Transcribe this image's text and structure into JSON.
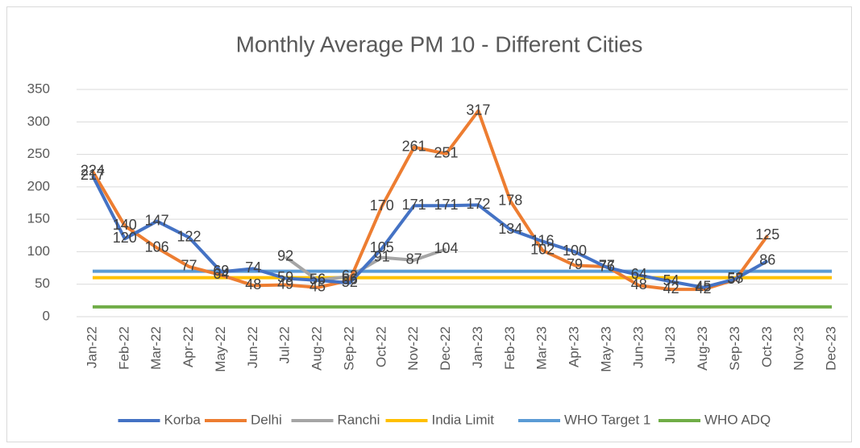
{
  "chart_data": {
    "type": "line",
    "title": "Monthly Average PM 10 - Different Cities",
    "categories": [
      "Jan-22",
      "Feb-22",
      "Mar-22",
      "Apr-22",
      "May-22",
      "Jun-22",
      "Jul-22",
      "Aug-22",
      "Sep-22",
      "Oct-22",
      "Nov-22",
      "Dec-22",
      "Jan-23",
      "Feb-23",
      "Mar-23",
      "Apr-23",
      "May-23",
      "Jun-23",
      "Jul-23",
      "Aug-23",
      "Sep-23",
      "Oct-23",
      "Nov-23",
      "Dec-23"
    ],
    "series": [
      {
        "name": "Korba",
        "color": "#4472c4",
        "data_labels": true,
        "values": [
          217,
          120,
          147,
          122,
          69,
          74,
          59,
          56,
          52,
          105,
          171,
          171,
          172,
          134,
          116,
          100,
          76,
          64,
          54,
          45,
          58,
          86,
          null,
          null
        ]
      },
      {
        "name": "Delhi",
        "color": "#ed7d31",
        "data_labels": true,
        "values": [
          224,
          140,
          106,
          77,
          64,
          48,
          49,
          45,
          56,
          170,
          261,
          251,
          317,
          178,
          102,
          79,
          77,
          48,
          42,
          42,
          57,
          125,
          null,
          null
        ]
      },
      {
        "name": "Ranchi",
        "color": "#a5a5a5",
        "data_labels": true,
        "values": [
          null,
          null,
          null,
          null,
          null,
          null,
          92,
          56,
          62,
          91,
          87,
          104,
          null,
          null,
          null,
          null,
          null,
          null,
          null,
          null,
          null,
          null,
          null,
          null
        ]
      },
      {
        "name": "India Limit",
        "color": "#ffc000",
        "data_labels": false,
        "values": [
          60,
          60,
          60,
          60,
          60,
          60,
          60,
          60,
          60,
          60,
          60,
          60,
          60,
          60,
          60,
          60,
          60,
          60,
          60,
          60,
          60,
          60,
          60,
          60
        ]
      },
      {
        "name": "WHO Target 1",
        "color": "#5b9bd5",
        "data_labels": false,
        "values": [
          70,
          70,
          70,
          70,
          70,
          70,
          70,
          70,
          70,
          70,
          70,
          70,
          70,
          70,
          70,
          70,
          70,
          70,
          70,
          70,
          70,
          70,
          70,
          70
        ]
      },
      {
        "name": "WHO ADQ",
        "color": "#70ad47",
        "data_labels": false,
        "values": [
          15,
          15,
          15,
          15,
          15,
          15,
          15,
          15,
          15,
          15,
          15,
          15,
          15,
          15,
          15,
          15,
          15,
          15,
          15,
          15,
          15,
          15,
          15,
          15
        ]
      }
    ],
    "ylim": [
      0,
      350
    ],
    "yticks": [
      0,
      50,
      100,
      150,
      200,
      250,
      300,
      350
    ],
    "grid": true,
    "legend": "bottom"
  }
}
